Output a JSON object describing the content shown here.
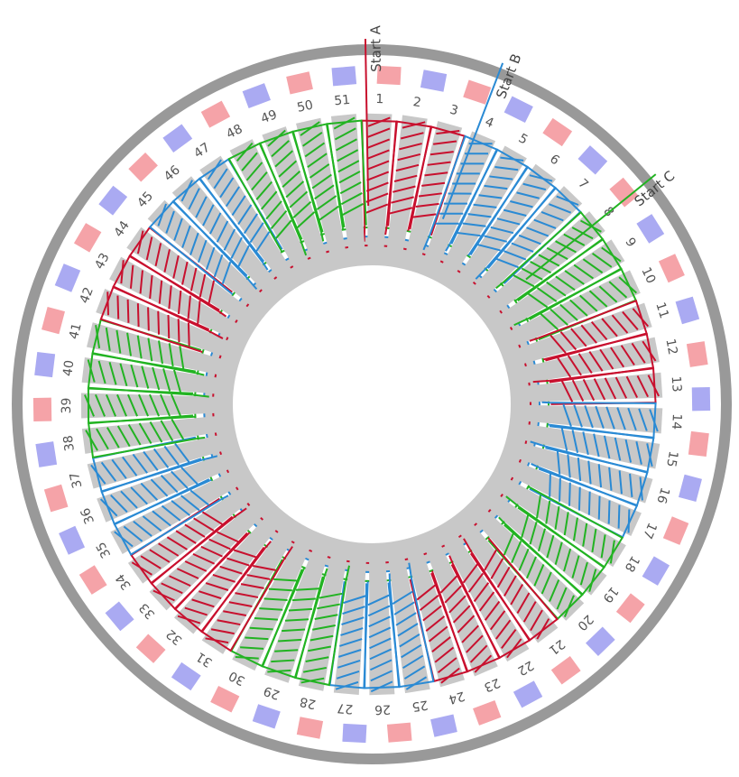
{
  "starts": [
    "Start A",
    "Start B",
    "Start C"
  ],
  "slots": [
    1,
    2,
    3,
    4,
    5,
    6,
    7,
    8,
    9,
    10,
    11,
    12,
    13,
    14,
    15,
    16,
    17,
    18,
    19,
    20,
    21,
    22,
    23,
    24,
    25,
    26,
    27,
    28,
    29,
    30,
    31,
    32,
    33,
    34,
    35,
    36,
    37,
    38,
    39,
    40,
    41,
    42,
    43,
    44,
    45,
    46,
    47,
    48,
    49,
    50,
    51
  ]
}
